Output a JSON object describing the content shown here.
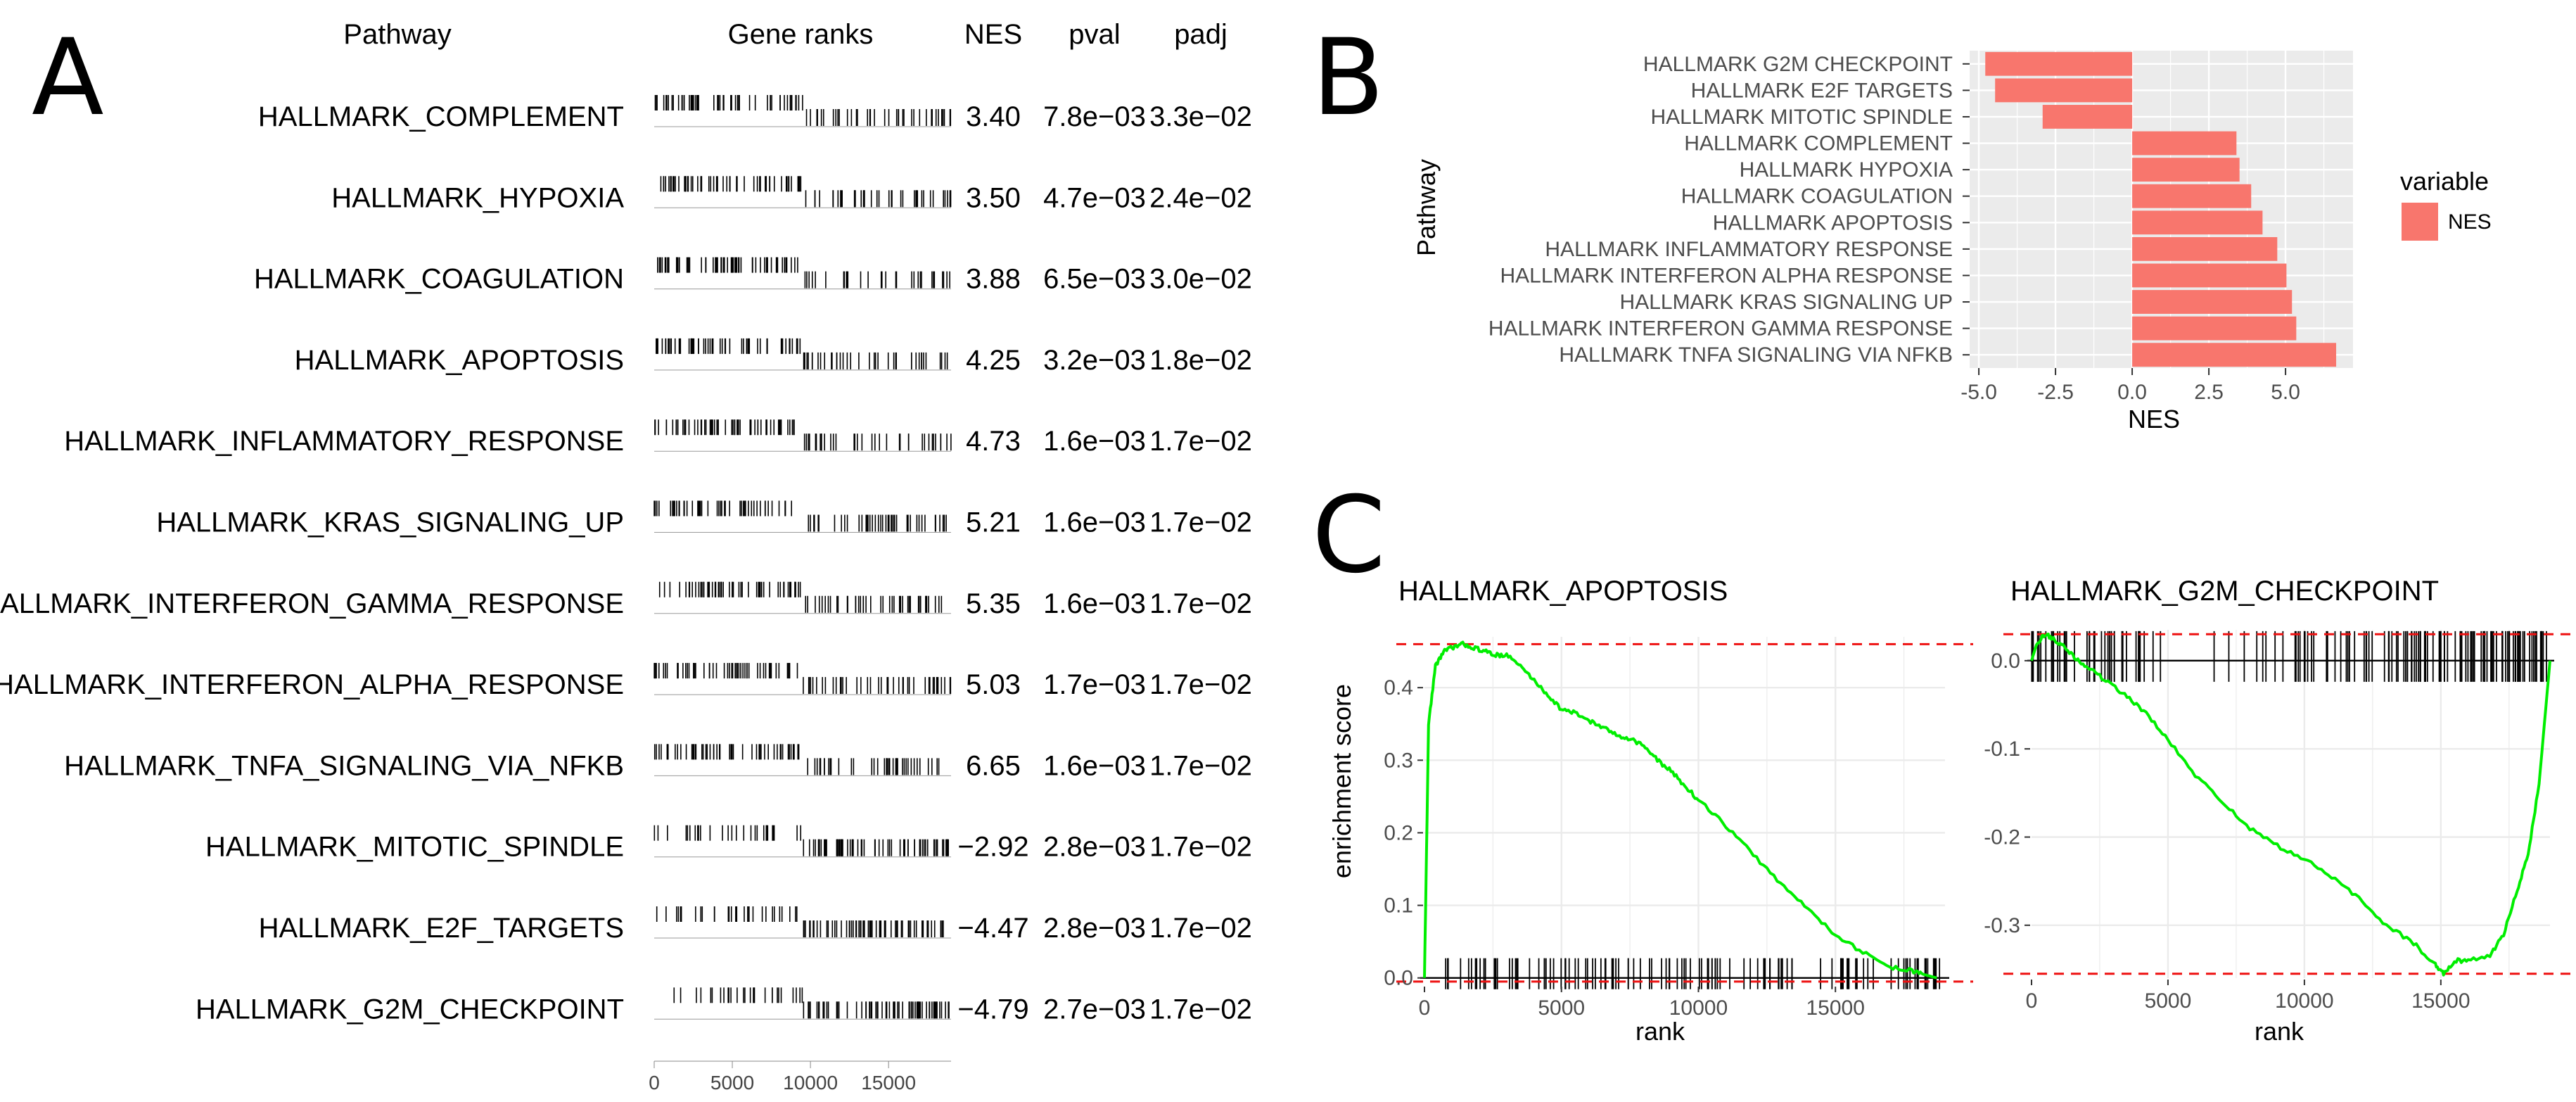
{
  "panels": {
    "a_label": "A",
    "b_label": "B",
    "c_label": "C"
  },
  "chart_data": [
    {
      "panel": "A",
      "type": "table",
      "columns": [
        "Pathway",
        "Gene ranks",
        "NES",
        "pval",
        "padj"
      ],
      "rows": [
        {
          "pathway": "HALLMARK_COMPLEMENT",
          "nes": "3.40",
          "pval": "7.8e−03",
          "padj": "3.3e−02"
        },
        {
          "pathway": "HALLMARK_HYPOXIA",
          "nes": "3.50",
          "pval": "4.7e−03",
          "padj": "2.4e−02"
        },
        {
          "pathway": "HALLMARK_COAGULATION",
          "nes": "3.88",
          "pval": "6.5e−03",
          "padj": "3.0e−02"
        },
        {
          "pathway": "HALLMARK_APOPTOSIS",
          "nes": "4.25",
          "pval": "3.2e−03",
          "padj": "1.8e−02"
        },
        {
          "pathway": "HALLMARK_INFLAMMATORY_RESPONSE",
          "nes": "4.73",
          "pval": "1.6e−03",
          "padj": "1.7e−02"
        },
        {
          "pathway": "HALLMARK_KRAS_SIGNALING_UP",
          "nes": "5.21",
          "pval": "1.6e−03",
          "padj": "1.7e−02"
        },
        {
          "pathway": "HALLMARK_INTERFERON_GAMMA_RESPONSE",
          "nes": "5.35",
          "pval": "1.6e−03",
          "padj": "1.7e−02"
        },
        {
          "pathway": "HALLMARK_INTERFERON_ALPHA_RESPONSE",
          "nes": "5.03",
          "pval": "1.7e−03",
          "padj": "1.7e−02"
        },
        {
          "pathway": "HALLMARK_TNFA_SIGNALING_VIA_NFKB",
          "nes": "6.65",
          "pval": "1.6e−03",
          "padj": "1.7e−02"
        },
        {
          "pathway": "HALLMARK_MITOTIC_SPINDLE",
          "nes": "−2.92",
          "pval": "2.8e−03",
          "padj": "1.7e−02"
        },
        {
          "pathway": "HALLMARK_E2F_TARGETS",
          "nes": "−4.47",
          "pval": "2.8e−03",
          "padj": "1.7e−02"
        },
        {
          "pathway": "HALLMARK_G2M_CHECKPOINT",
          "nes": "−4.79",
          "pval": "2.7e−03",
          "padj": "1.7e−02"
        }
      ],
      "gene_rank_axis": {
        "ticks": [
          0,
          5000,
          10000,
          15000
        ],
        "range": [
          0,
          19000
        ]
      }
    },
    {
      "panel": "B",
      "type": "bar",
      "orientation": "horizontal",
      "categories": [
        "HALLMARK G2M CHECKPOINT",
        "HALLMARK E2F TARGETS",
        "HALLMARK MITOTIC SPINDLE",
        "HALLMARK COMPLEMENT",
        "HALLMARK HYPOXIA",
        "HALLMARK COAGULATION",
        "HALLMARK APOPTOSIS",
        "HALLMARK INFLAMMATORY RESPONSE",
        "HALLMARK INTERFERON ALPHA RESPONSE",
        "HALLMARK KRAS SIGNALING UP",
        "HALLMARK INTERFERON GAMMA RESPONSE",
        "HALLMARK TNFA SIGNALING VIA NFKB"
      ],
      "series": [
        {
          "name": "NES",
          "values": [
            -4.79,
            -4.47,
            -2.92,
            3.4,
            3.5,
            3.88,
            4.25,
            4.73,
            5.03,
            5.21,
            5.35,
            6.65
          ]
        }
      ],
      "xlabel": "NES",
      "ylabel": "Pathway",
      "xlim": [
        -5.3,
        7.2
      ],
      "xticks": [
        -5.0,
        -2.5,
        0.0,
        2.5,
        5.0
      ],
      "xtick_labels": [
        "-5.0",
        "-2.5",
        "0.0",
        "2.5",
        "5.0"
      ],
      "legend_title": "variable",
      "legend_position": "right",
      "bar_color": "#f8766d",
      "panel_bg": "#ebebeb",
      "grid": true
    },
    {
      "panel": "C",
      "type": "line",
      "title": "HALLMARK_APOPTOSIS",
      "xlabel": "rank",
      "ylabel": "enrichment score",
      "xlim": [
        0,
        19000
      ],
      "ylim": [
        -0.01,
        0.47
      ],
      "xticks": [
        0,
        5000,
        10000,
        15000
      ],
      "yticks": [
        0.0,
        0.1,
        0.2,
        0.3,
        0.4
      ],
      "ytick_labels": [
        "0.0",
        "0.1",
        "0.2",
        "0.3",
        "0.4"
      ],
      "dashed_lines": [
        0.46,
        -0.005
      ],
      "curve_color": "#00ee00",
      "x": [
        0,
        150,
        400,
        700,
        1000,
        1400,
        1800,
        2200,
        2600,
        3000,
        3500,
        4000,
        4500,
        5000,
        5500,
        6000,
        6500,
        7000,
        7500,
        8000,
        8500,
        9000,
        9500,
        10000,
        11000,
        12000,
        13000,
        14000,
        15000,
        16000,
        17000,
        17800,
        18200,
        18700
      ],
      "y": [
        0.0,
        0.35,
        0.43,
        0.45,
        0.455,
        0.46,
        0.455,
        0.45,
        0.445,
        0.445,
        0.43,
        0.41,
        0.39,
        0.37,
        0.365,
        0.355,
        0.345,
        0.335,
        0.33,
        0.32,
        0.3,
        0.285,
        0.265,
        0.245,
        0.21,
        0.17,
        0.13,
        0.095,
        0.06,
        0.035,
        0.015,
        0.01,
        0.005,
        0.0
      ]
    },
    {
      "panel": "C",
      "type": "line",
      "title": "HALLMARK_G2M_CHECKPOINT",
      "xlabel": "rank",
      "ylabel": "",
      "xlim": [
        0,
        19000
      ],
      "ylim": [
        -0.36,
        0.035
      ],
      "xticks": [
        0,
        5000,
        10000,
        15000
      ],
      "yticks": [
        0.0,
        -0.1,
        -0.2,
        -0.3
      ],
      "ytick_labels": [
        "0.0",
        "-0.1",
        "-0.2",
        "-0.3"
      ],
      "dashed_lines": [
        0.03,
        -0.355
      ],
      "curve_color": "#00ee00",
      "x": [
        0,
        200,
        500,
        800,
        1200,
        1700,
        2200,
        2800,
        3500,
        4200,
        5000,
        6000,
        7000,
        8000,
        9000,
        10000,
        11000,
        12000,
        13000,
        14000,
        14800,
        15100,
        15500,
        16000,
        16800,
        17300,
        17800,
        18200,
        18600,
        19000
      ],
      "y": [
        0.0,
        0.02,
        0.03,
        0.025,
        0.015,
        0.0,
        -0.01,
        -0.025,
        -0.04,
        -0.06,
        -0.09,
        -0.13,
        -0.16,
        -0.19,
        -0.21,
        -0.225,
        -0.245,
        -0.27,
        -0.3,
        -0.32,
        -0.345,
        -0.355,
        -0.34,
        -0.34,
        -0.335,
        -0.31,
        -0.26,
        -0.22,
        -0.14,
        0.0
      ]
    }
  ]
}
